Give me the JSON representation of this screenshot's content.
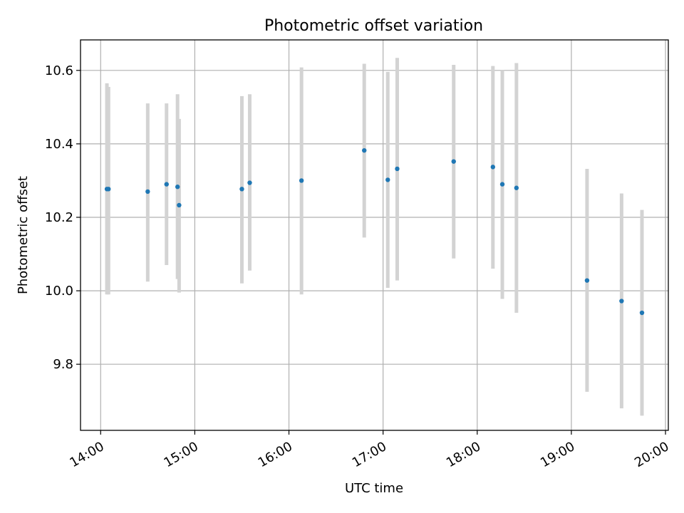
{
  "chart_data": {
    "type": "scatter",
    "title": "Photometric offset variation",
    "xlabel": "UTC time",
    "ylabel": "Photometric offset",
    "x_ticks": [
      "14:00",
      "15:00",
      "16:00",
      "17:00",
      "18:00",
      "19:00",
      "20:00"
    ],
    "y_ticks": [
      "9.8",
      "10.0",
      "10.2",
      "10.4",
      "10.6"
    ],
    "x_tick_values_hours": [
      14,
      15,
      16,
      17,
      18,
      19,
      20
    ],
    "y_tick_values": [
      9.8,
      10.0,
      10.2,
      10.4,
      10.6
    ],
    "xlim_hours": [
      13.786,
      20.03
    ],
    "ylim": [
      9.62,
      10.683
    ],
    "grid": true,
    "marker_color": "#1f77b4",
    "errorbar_color": "#d3d3d3",
    "series": [
      {
        "points": [
          {
            "t": "14:04",
            "y": 10.277,
            "lo": 9.99,
            "hi": 10.565
          },
          {
            "t": "14:05",
            "y": 10.277,
            "lo": 9.99,
            "hi": 10.555
          },
          {
            "t": "14:30",
            "y": 10.27,
            "lo": 10.025,
            "hi": 10.51
          },
          {
            "t": "14:42",
            "y": 10.29,
            "lo": 10.07,
            "hi": 10.51
          },
          {
            "t": "14:49",
            "y": 10.283,
            "lo": 10.032,
            "hi": 10.535
          },
          {
            "t": "14:50",
            "y": 10.233,
            "lo": 9.995,
            "hi": 10.468
          },
          {
            "t": "15:30",
            "y": 10.277,
            "lo": 10.02,
            "hi": 10.53
          },
          {
            "t": "15:35",
            "y": 10.294,
            "lo": 10.055,
            "hi": 10.535
          },
          {
            "t": "16:08",
            "y": 10.3,
            "lo": 9.99,
            "hi": 10.608
          },
          {
            "t": "16:48",
            "y": 10.382,
            "lo": 10.145,
            "hi": 10.618
          },
          {
            "t": "17:03",
            "y": 10.302,
            "lo": 10.008,
            "hi": 10.596
          },
          {
            "t": "17:09",
            "y": 10.332,
            "lo": 10.028,
            "hi": 10.634
          },
          {
            "t": "17:45",
            "y": 10.352,
            "lo": 10.088,
            "hi": 10.615
          },
          {
            "t": "18:10",
            "y": 10.337,
            "lo": 10.06,
            "hi": 10.612
          },
          {
            "t": "18:16",
            "y": 10.29,
            "lo": 9.978,
            "hi": 10.6
          },
          {
            "t": "18:25",
            "y": 10.28,
            "lo": 9.94,
            "hi": 10.62
          },
          {
            "t": "19:10",
            "y": 10.028,
            "lo": 9.725,
            "hi": 10.332
          },
          {
            "t": "19:32",
            "y": 9.972,
            "lo": 9.68,
            "hi": 10.265
          },
          {
            "t": "19:45",
            "y": 9.94,
            "lo": 9.66,
            "hi": 10.22
          }
        ]
      }
    ]
  }
}
